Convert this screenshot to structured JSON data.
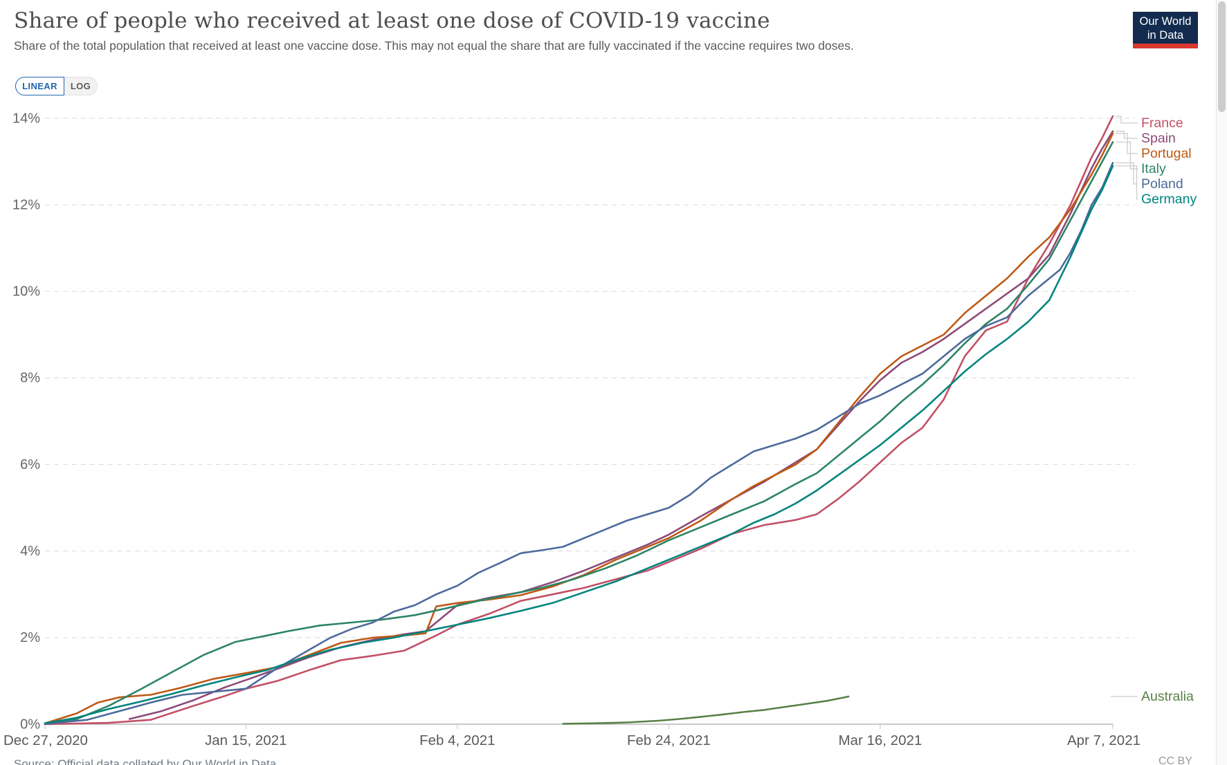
{
  "header": {
    "title": "Share of people who received at least one dose of COVID-19 vaccine",
    "subtitle": "Share of the total population that received at least one vaccine dose. This may not equal the share that are fully vaccinated if the vaccine requires two doses.",
    "logo": {
      "line1": "Our World",
      "line2": "in Data",
      "bg_color": "#122B4E",
      "bar_color": "#D9382E"
    }
  },
  "controls": {
    "linear_label": "LINEAR",
    "log_label": "LOG",
    "active": "LINEAR",
    "accent_color": "#2166AC"
  },
  "chart_data": {
    "type": "line",
    "title": "Share of people who received at least one dose of COVID-19 vaccine",
    "xlabel": "",
    "ylabel": "",
    "y_unit": "%",
    "ylim": [
      0,
      14
    ],
    "grid": true,
    "legend_position": "right",
    "x_start_date": "Dec 27, 2020",
    "x_end_date": "Apr 7, 2021",
    "x_range_days": [
      0,
      101
    ],
    "y_tick_labels": [
      "0%",
      "2%",
      "4%",
      "6%",
      "8%",
      "10%",
      "12%",
      "14%"
    ],
    "x_ticks": [
      {
        "label": "Dec 27, 2020",
        "day": 0
      },
      {
        "label": "Jan 15, 2021",
        "day": 19
      },
      {
        "label": "Feb 4, 2021",
        "day": 39
      },
      {
        "label": "Feb 24, 2021",
        "day": 59
      },
      {
        "label": "Mar 16, 2021",
        "day": 79
      },
      {
        "label": "Apr 7, 2021",
        "day": 101
      }
    ],
    "series": [
      {
        "name": "France",
        "color": "#C15065",
        "points": [
          [
            0,
            0
          ],
          [
            6,
            0.03
          ],
          [
            10,
            0.1
          ],
          [
            14,
            0.42
          ],
          [
            17,
            0.65
          ],
          [
            19,
            0.82
          ],
          [
            22,
            1.0
          ],
          [
            25,
            1.25
          ],
          [
            28,
            1.48
          ],
          [
            31,
            1.58
          ],
          [
            34,
            1.7
          ],
          [
            37,
            2.05
          ],
          [
            39,
            2.3
          ],
          [
            42,
            2.55
          ],
          [
            45,
            2.85
          ],
          [
            48,
            3.0
          ],
          [
            51,
            3.15
          ],
          [
            54,
            3.35
          ],
          [
            57,
            3.55
          ],
          [
            59,
            3.75
          ],
          [
            62,
            4.05
          ],
          [
            65,
            4.4
          ],
          [
            68,
            4.6
          ],
          [
            71,
            4.72
          ],
          [
            73,
            4.85
          ],
          [
            75,
            5.2
          ],
          [
            77,
            5.6
          ],
          [
            79,
            6.05
          ],
          [
            81,
            6.5
          ],
          [
            83,
            6.85
          ],
          [
            85,
            7.5
          ],
          [
            87,
            8.5
          ],
          [
            89,
            9.1
          ],
          [
            91,
            9.3
          ],
          [
            93,
            10.3
          ],
          [
            95,
            11.1
          ],
          [
            97,
            12.0
          ],
          [
            99,
            13.1
          ],
          [
            100,
            13.55
          ],
          [
            101,
            14.05
          ]
        ]
      },
      {
        "name": "Spain",
        "color": "#8C4A77",
        "points": [
          [
            8,
            0.12
          ],
          [
            11,
            0.3
          ],
          [
            14,
            0.55
          ],
          [
            17,
            0.85
          ],
          [
            19,
            1.02
          ],
          [
            22,
            1.28
          ],
          [
            25,
            1.55
          ],
          [
            28,
            1.78
          ],
          [
            31,
            1.95
          ],
          [
            34,
            2.08
          ],
          [
            36,
            2.15
          ],
          [
            39,
            2.75
          ],
          [
            42,
            2.92
          ],
          [
            45,
            3.05
          ],
          [
            48,
            3.28
          ],
          [
            51,
            3.55
          ],
          [
            54,
            3.85
          ],
          [
            57,
            4.15
          ],
          [
            59,
            4.38
          ],
          [
            62,
            4.8
          ],
          [
            65,
            5.2
          ],
          [
            68,
            5.6
          ],
          [
            71,
            6.05
          ],
          [
            73,
            6.35
          ],
          [
            75,
            6.9
          ],
          [
            77,
            7.45
          ],
          [
            79,
            7.95
          ],
          [
            81,
            8.35
          ],
          [
            83,
            8.6
          ],
          [
            85,
            8.9
          ],
          [
            87,
            9.25
          ],
          [
            89,
            9.6
          ],
          [
            91,
            9.95
          ],
          [
            93,
            10.3
          ],
          [
            95,
            10.85
          ],
          [
            97,
            11.8
          ],
          [
            99,
            12.85
          ],
          [
            100,
            13.3
          ],
          [
            101,
            13.7
          ]
        ]
      },
      {
        "name": "Portugal",
        "color": "#BE5915",
        "points": [
          [
            0,
            0.02
          ],
          [
            3,
            0.25
          ],
          [
            5,
            0.5
          ],
          [
            7,
            0.62
          ],
          [
            10,
            0.68
          ],
          [
            13,
            0.85
          ],
          [
            16,
            1.05
          ],
          [
            19,
            1.18
          ],
          [
            22,
            1.32
          ],
          [
            25,
            1.6
          ],
          [
            28,
            1.88
          ],
          [
            31,
            2.0
          ],
          [
            34,
            2.05
          ],
          [
            36,
            2.1
          ],
          [
            37,
            2.72
          ],
          [
            39,
            2.8
          ],
          [
            42,
            2.88
          ],
          [
            45,
            2.98
          ],
          [
            48,
            3.18
          ],
          [
            51,
            3.45
          ],
          [
            54,
            3.8
          ],
          [
            57,
            4.1
          ],
          [
            59,
            4.3
          ],
          [
            62,
            4.7
          ],
          [
            65,
            5.2
          ],
          [
            67,
            5.5
          ],
          [
            69,
            5.75
          ],
          [
            71,
            6.0
          ],
          [
            73,
            6.35
          ],
          [
            75,
            6.95
          ],
          [
            77,
            7.55
          ],
          [
            79,
            8.1
          ],
          [
            81,
            8.5
          ],
          [
            83,
            8.75
          ],
          [
            85,
            9.0
          ],
          [
            87,
            9.5
          ],
          [
            89,
            9.9
          ],
          [
            91,
            10.3
          ],
          [
            93,
            10.8
          ],
          [
            95,
            11.25
          ],
          [
            97,
            11.9
          ],
          [
            99,
            12.7
          ],
          [
            100,
            13.15
          ],
          [
            101,
            13.65
          ]
        ]
      },
      {
        "name": "Italy",
        "color": "#2C8465",
        "points": [
          [
            0,
            0.02
          ],
          [
            3,
            0.12
          ],
          [
            6,
            0.42
          ],
          [
            9,
            0.8
          ],
          [
            12,
            1.2
          ],
          [
            15,
            1.6
          ],
          [
            18,
            1.9
          ],
          [
            20,
            2.0
          ],
          [
            23,
            2.15
          ],
          [
            26,
            2.28
          ],
          [
            29,
            2.35
          ],
          [
            32,
            2.42
          ],
          [
            35,
            2.52
          ],
          [
            38,
            2.68
          ],
          [
            41,
            2.85
          ],
          [
            44,
            3.0
          ],
          [
            47,
            3.15
          ],
          [
            50,
            3.35
          ],
          [
            53,
            3.6
          ],
          [
            56,
            3.9
          ],
          [
            59,
            4.25
          ],
          [
            62,
            4.55
          ],
          [
            65,
            4.85
          ],
          [
            68,
            5.15
          ],
          [
            71,
            5.55
          ],
          [
            73,
            5.8
          ],
          [
            75,
            6.2
          ],
          [
            77,
            6.6
          ],
          [
            79,
            7.0
          ],
          [
            81,
            7.45
          ],
          [
            83,
            7.85
          ],
          [
            85,
            8.3
          ],
          [
            87,
            8.8
          ],
          [
            89,
            9.25
          ],
          [
            91,
            9.6
          ],
          [
            93,
            10.15
          ],
          [
            95,
            10.75
          ],
          [
            97,
            11.65
          ],
          [
            99,
            12.55
          ],
          [
            100,
            13.0
          ],
          [
            101,
            13.45
          ]
        ]
      },
      {
        "name": "Poland",
        "color": "#4C6A9C",
        "points": [
          [
            0,
            0.01
          ],
          [
            4,
            0.1
          ],
          [
            7,
            0.3
          ],
          [
            10,
            0.5
          ],
          [
            13,
            0.68
          ],
          [
            16,
            0.75
          ],
          [
            19,
            0.82
          ],
          [
            22,
            1.3
          ],
          [
            25,
            1.72
          ],
          [
            27,
            2.0
          ],
          [
            29,
            2.2
          ],
          [
            31,
            2.35
          ],
          [
            33,
            2.6
          ],
          [
            35,
            2.75
          ],
          [
            37,
            3.0
          ],
          [
            39,
            3.2
          ],
          [
            41,
            3.5
          ],
          [
            43,
            3.72
          ],
          [
            45,
            3.95
          ],
          [
            47,
            4.02
          ],
          [
            49,
            4.1
          ],
          [
            51,
            4.3
          ],
          [
            53,
            4.5
          ],
          [
            55,
            4.7
          ],
          [
            57,
            4.85
          ],
          [
            59,
            5.0
          ],
          [
            61,
            5.3
          ],
          [
            63,
            5.7
          ],
          [
            65,
            6.0
          ],
          [
            67,
            6.3
          ],
          [
            69,
            6.45
          ],
          [
            71,
            6.6
          ],
          [
            73,
            6.8
          ],
          [
            75,
            7.1
          ],
          [
            77,
            7.4
          ],
          [
            79,
            7.6
          ],
          [
            81,
            7.85
          ],
          [
            83,
            8.1
          ],
          [
            85,
            8.5
          ],
          [
            87,
            8.9
          ],
          [
            89,
            9.2
          ],
          [
            91,
            9.4
          ],
          [
            93,
            9.9
          ],
          [
            95,
            10.3
          ],
          [
            96,
            10.5
          ],
          [
            97,
            10.9
          ],
          [
            98,
            11.4
          ],
          [
            99,
            12.0
          ],
          [
            100,
            12.4
          ],
          [
            101,
            12.97
          ]
        ]
      },
      {
        "name": "Germany",
        "color": "#00847E",
        "points": [
          [
            0,
            0.02
          ],
          [
            3,
            0.15
          ],
          [
            6,
            0.35
          ],
          [
            9,
            0.52
          ],
          [
            12,
            0.7
          ],
          [
            15,
            0.9
          ],
          [
            18,
            1.08
          ],
          [
            21,
            1.25
          ],
          [
            24,
            1.5
          ],
          [
            27,
            1.72
          ],
          [
            30,
            1.88
          ],
          [
            33,
            2.0
          ],
          [
            36,
            2.15
          ],
          [
            39,
            2.3
          ],
          [
            42,
            2.45
          ],
          [
            45,
            2.62
          ],
          [
            48,
            2.8
          ],
          [
            51,
            3.05
          ],
          [
            54,
            3.3
          ],
          [
            57,
            3.6
          ],
          [
            59,
            3.8
          ],
          [
            61,
            4.0
          ],
          [
            63,
            4.2
          ],
          [
            65,
            4.4
          ],
          [
            67,
            4.65
          ],
          [
            69,
            4.85
          ],
          [
            71,
            5.1
          ],
          [
            73,
            5.4
          ],
          [
            75,
            5.75
          ],
          [
            77,
            6.1
          ],
          [
            79,
            6.45
          ],
          [
            81,
            6.85
          ],
          [
            83,
            7.25
          ],
          [
            85,
            7.7
          ],
          [
            87,
            8.15
          ],
          [
            89,
            8.55
          ],
          [
            91,
            8.9
          ],
          [
            93,
            9.3
          ],
          [
            95,
            9.8
          ],
          [
            97,
            10.8
          ],
          [
            99,
            11.9
          ],
          [
            100,
            12.35
          ],
          [
            101,
            12.9
          ]
        ]
      },
      {
        "name": "Australia",
        "color": "#578145",
        "points": [
          [
            49,
            0.01
          ],
          [
            52,
            0.02
          ],
          [
            55,
            0.04
          ],
          [
            58,
            0.08
          ],
          [
            60,
            0.12
          ],
          [
            62,
            0.17
          ],
          [
            64,
            0.22
          ],
          [
            66,
            0.28
          ],
          [
            68,
            0.33
          ],
          [
            70,
            0.4
          ],
          [
            72,
            0.47
          ],
          [
            74,
            0.54
          ],
          [
            75,
            0.59
          ],
          [
            76,
            0.64
          ]
        ]
      }
    ]
  },
  "footer": {
    "source": "Source: Official data collated by Our World in Data",
    "license": "CC BY"
  }
}
